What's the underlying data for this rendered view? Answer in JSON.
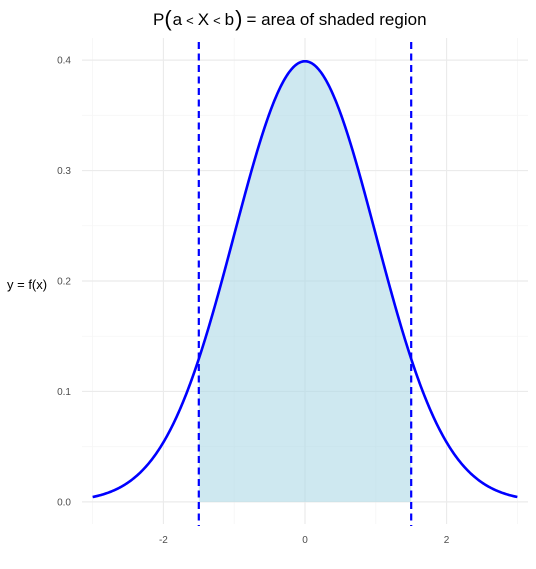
{
  "chart_data": {
    "type": "area",
    "title": {
      "prefix": "P",
      "open_paren": "(",
      "a": "a",
      "lt1": "<",
      "X": "X",
      "lt2": "<",
      "b": "b",
      "close_paren": ")",
      "suffix": "= area of shaded region"
    },
    "xlabel": "",
    "ylabel": "y = f(x)",
    "xlim": [
      -3.15,
      3.15
    ],
    "ylim": [
      -0.02,
      0.42
    ],
    "x_ticks": [
      -2,
      0,
      2
    ],
    "x_tick_labels": [
      "-2",
      "0",
      "2"
    ],
    "y_ticks": [
      0.0,
      0.1,
      0.2,
      0.3,
      0.4
    ],
    "y_tick_labels": [
      "0.0",
      "0.1",
      "0.2",
      "0.3",
      "0.4"
    ],
    "grid": true,
    "curve": {
      "function": "standard normal density",
      "x_range": [
        -3,
        3
      ],
      "x": [
        -3.0,
        -2.75,
        -2.5,
        -2.25,
        -2.0,
        -1.75,
        -1.5,
        -1.25,
        -1.0,
        -0.75,
        -0.5,
        -0.25,
        0.0,
        0.25,
        0.5,
        0.75,
        1.0,
        1.25,
        1.5,
        1.75,
        2.0,
        2.25,
        2.5,
        2.75,
        3.0
      ],
      "y": [
        0.0044,
        0.0091,
        0.0175,
        0.0317,
        0.054,
        0.0863,
        0.1295,
        0.1826,
        0.242,
        0.3011,
        0.3521,
        0.3867,
        0.3989,
        0.3867,
        0.3521,
        0.3011,
        0.242,
        0.1826,
        0.1295,
        0.0863,
        0.054,
        0.0317,
        0.0175,
        0.0091,
        0.0044
      ]
    },
    "shaded_region": {
      "from": -1.5,
      "to": 1.5
    },
    "vlines": [
      {
        "name": "a",
        "x": -1.5
      },
      {
        "name": "b",
        "x": 1.5
      }
    ],
    "colors": {
      "curve": "#0000ff",
      "fill": "#add8e6",
      "vline": "#0000ff",
      "grid_major": "#ebebeb",
      "grid_minor": "#f5f5f5",
      "background": "#ffffff"
    }
  }
}
